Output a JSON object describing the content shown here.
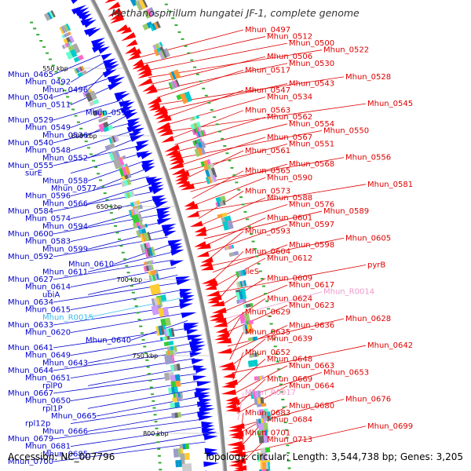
{
  "title": "Methanospirillum hungatei JF-1, complete genome",
  "footer": {
    "accession": "Accession: NC_007796",
    "topology": "Topology: circular; Length: 3,544,738 bp; Genes: 3,205"
  },
  "kbp_ticks": [
    "550 kbp",
    "600 kbp",
    "650 kbp",
    "700 kbp",
    "750 kbp",
    "800 kbp"
  ],
  "left_labels": [
    {
      "text": "Mhun_0465",
      "color": "#0000cc"
    },
    {
      "text": "Mhun_0492",
      "color": "#0000cc"
    },
    {
      "text": "Mhun_0496",
      "color": "#0000cc"
    },
    {
      "text": "Mhun_0504",
      "color": "#0000cc"
    },
    {
      "text": "Mhun_0511",
      "color": "#0000cc"
    },
    {
      "text": "Mhun_0519",
      "color": "#0000cc"
    },
    {
      "text": "Mhun_0529",
      "color": "#0000cc"
    },
    {
      "text": "Mhun_0549",
      "color": "#0000cc"
    },
    {
      "text": "Mhun_0536",
      "color": "#0000cc"
    },
    {
      "text": "Mhun_0540",
      "color": "#0000cc"
    },
    {
      "text": "Mhun_0548",
      "color": "#0000cc"
    },
    {
      "text": "Mhun_0552",
      "color": "#0000cc"
    },
    {
      "text": "Mhun_0555",
      "color": "#0000cc"
    },
    {
      "text": "surE",
      "color": "#0000cc"
    },
    {
      "text": "Mhun_0558",
      "color": "#0000cc"
    },
    {
      "text": "Mhun_0577",
      "color": "#0000cc"
    },
    {
      "text": "Mhun_0596",
      "color": "#0000cc"
    },
    {
      "text": "Mhun_0566",
      "color": "#0000cc"
    },
    {
      "text": "Mhun_0584",
      "color": "#0000cc"
    },
    {
      "text": "Mhun_0574",
      "color": "#0000cc"
    },
    {
      "text": "Mhun_0594",
      "color": "#0000cc"
    },
    {
      "text": "Mhun_0600",
      "color": "#0000cc"
    },
    {
      "text": "Mhun_0583",
      "color": "#0000cc"
    },
    {
      "text": "Mhun_0599",
      "color": "#0000cc"
    },
    {
      "text": "Mhun_0592",
      "color": "#0000cc"
    },
    {
      "text": "Mhun_0610",
      "color": "#0000cc"
    },
    {
      "text": "Mhun_0611",
      "color": "#0000cc"
    },
    {
      "text": "Mhun_0627",
      "color": "#0000cc"
    },
    {
      "text": "Mhun_0614",
      "color": "#0000cc"
    },
    {
      "text": "ubiA",
      "color": "#0000cc"
    },
    {
      "text": "Mhun_0634",
      "color": "#0000cc"
    },
    {
      "text": "Mhun_0615",
      "color": "#0000cc"
    },
    {
      "text": "Mhun_R0015",
      "color": "#33bbee"
    },
    {
      "text": "Mhun_0633",
      "color": "#0000cc"
    },
    {
      "text": "Mhun_0620",
      "color": "#0000cc"
    },
    {
      "text": "Mhun_0640",
      "color": "#0000cc"
    },
    {
      "text": "Mhun_0641",
      "color": "#0000cc"
    },
    {
      "text": "Mhun_0649",
      "color": "#0000cc"
    },
    {
      "text": "Mhun_0643",
      "color": "#0000cc"
    },
    {
      "text": "Mhun_0644",
      "color": "#0000cc"
    },
    {
      "text": "Mhun_0651",
      "color": "#0000cc"
    },
    {
      "text": "rplP0",
      "color": "#0000cc"
    },
    {
      "text": "Mhun_0667",
      "color": "#0000cc"
    },
    {
      "text": "Mhun_0650",
      "color": "#0000cc"
    },
    {
      "text": "rpl1P",
      "color": "#0000cc"
    },
    {
      "text": "Mhun_0665",
      "color": "#0000cc"
    },
    {
      "text": "rpl12p",
      "color": "#0000cc"
    },
    {
      "text": "Mhun_0666",
      "color": "#0000cc"
    },
    {
      "text": "Mhun_0679",
      "color": "#0000cc"
    },
    {
      "text": "Mhun_0681",
      "color": "#0000cc"
    },
    {
      "text": "Mhun_0685",
      "color": "#0000cc"
    },
    {
      "text": "Mhun_0700",
      "color": "#0000cc"
    }
  ],
  "right_labels": [
    {
      "text": "Mhun_0497",
      "color": "#dd0000"
    },
    {
      "text": "Mhun_0512",
      "color": "#dd0000"
    },
    {
      "text": "Mhun_0500",
      "color": "#dd0000"
    },
    {
      "text": "Mhun_0522",
      "color": "#dd0000"
    },
    {
      "text": "Mhun_0506",
      "color": "#dd0000"
    },
    {
      "text": "Mhun_0530",
      "color": "#dd0000"
    },
    {
      "text": "Mhun_0517",
      "color": "#dd0000"
    },
    {
      "text": "Mhun_0528",
      "color": "#dd0000"
    },
    {
      "text": "Mhun_0543",
      "color": "#dd0000"
    },
    {
      "text": "Mhun_0547",
      "color": "#dd0000"
    },
    {
      "text": "Mhun_0534",
      "color": "#dd0000"
    },
    {
      "text": "Mhun_0545",
      "color": "#dd0000"
    },
    {
      "text": "Mhun_0563",
      "color": "#dd0000"
    },
    {
      "text": "Mhun_0562",
      "color": "#dd0000"
    },
    {
      "text": "Mhun_0554",
      "color": "#dd0000"
    },
    {
      "text": "Mhun_0550",
      "color": "#dd0000"
    },
    {
      "text": "Mhun_0567",
      "color": "#dd0000"
    },
    {
      "text": "Mhun_0551",
      "color": "#dd0000"
    },
    {
      "text": "Mhun_0561",
      "color": "#dd0000"
    },
    {
      "text": "Mhun_0556",
      "color": "#dd0000"
    },
    {
      "text": "Mhun_0568",
      "color": "#dd0000"
    },
    {
      "text": "Mhun_0565",
      "color": "#dd0000"
    },
    {
      "text": "Mhun_0590",
      "color": "#dd0000"
    },
    {
      "text": "Mhun_0581",
      "color": "#dd0000"
    },
    {
      "text": "Mhun_0573",
      "color": "#dd0000"
    },
    {
      "text": "Mhun_0588",
      "color": "#dd0000"
    },
    {
      "text": "Mhun_0576",
      "color": "#dd0000"
    },
    {
      "text": "Mhun_0589",
      "color": "#dd0000"
    },
    {
      "text": "Mhun_0601",
      "color": "#dd0000"
    },
    {
      "text": "Mhun_0597",
      "color": "#dd0000"
    },
    {
      "text": "Mhun_0593",
      "color": "#dd0000"
    },
    {
      "text": "Mhun_0605",
      "color": "#dd0000"
    },
    {
      "text": "Mhun_0598",
      "color": "#dd0000"
    },
    {
      "text": "Mhun_0604",
      "color": "#dd0000"
    },
    {
      "text": "Mhun_0612",
      "color": "#dd0000"
    },
    {
      "text": "pyrB",
      "color": "#dd0000"
    },
    {
      "text": "ileS",
      "color": "#dd0000"
    },
    {
      "text": "Mhun_0609",
      "color": "#dd0000"
    },
    {
      "text": "Mhun_0617",
      "color": "#dd0000"
    },
    {
      "text": "Mhun_R0014",
      "color": "#ee99cc"
    },
    {
      "text": "Mhun_0624",
      "color": "#dd0000"
    },
    {
      "text": "Mhun_0623",
      "color": "#dd0000"
    },
    {
      "text": "Mhun_0629",
      "color": "#dd0000"
    },
    {
      "text": "Mhun_0628",
      "color": "#dd0000"
    },
    {
      "text": "Mhun_0636",
      "color": "#dd0000"
    },
    {
      "text": "Mhun_0635",
      "color": "#dd0000"
    },
    {
      "text": "Mhun_0639",
      "color": "#dd0000"
    },
    {
      "text": "Mhun_0642",
      "color": "#dd0000"
    },
    {
      "text": "Mhun_0652",
      "color": "#dd0000"
    },
    {
      "text": "Mhun_0648",
      "color": "#dd0000"
    },
    {
      "text": "Mhun_0663",
      "color": "#dd0000"
    },
    {
      "text": "Mhun_0653",
      "color": "#dd0000"
    },
    {
      "text": "Mhun_0669",
      "color": "#dd0000"
    },
    {
      "text": "Mhun_0664",
      "color": "#dd0000"
    },
    {
      "text": "Mhun_R0017",
      "color": "#ee99cc"
    },
    {
      "text": "Mhun_0676",
      "color": "#dd0000"
    },
    {
      "text": "Mhun_0680",
      "color": "#dd0000"
    },
    {
      "text": "Mhun_0683",
      "color": "#dd0000"
    },
    {
      "text": "Mhun_0684",
      "color": "#dd0000"
    },
    {
      "text": "Mhun_0699",
      "color": "#dd0000"
    },
    {
      "text": "Mhun_0701",
      "color": "#dd0000"
    },
    {
      "text": "Mhun_0713",
      "color": "#dd0000"
    }
  ]
}
